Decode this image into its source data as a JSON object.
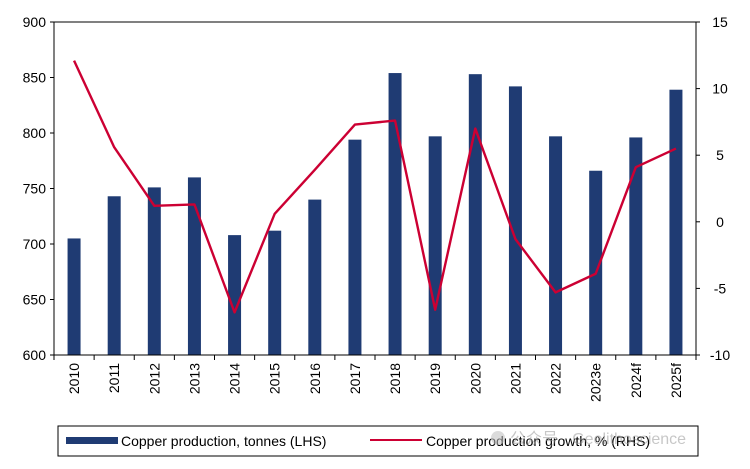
{
  "chart_data": {
    "type": "bar",
    "title": "",
    "xlabel": "",
    "ylabel": "",
    "y2label": "",
    "categories": [
      "2010",
      "2011",
      "2012",
      "2013",
      "2014",
      "2015",
      "2016",
      "2017",
      "2018",
      "2019",
      "2020",
      "2021",
      "2022",
      "2023e",
      "2024f",
      "2025f"
    ],
    "ylim": [
      600,
      900
    ],
    "y2lim": [
      -10,
      15
    ],
    "y_ticks": [
      "600",
      "650",
      "700",
      "750",
      "800",
      "850",
      "900"
    ],
    "y2_ticks": [
      "-10",
      "-5",
      "0",
      "5",
      "10",
      "15"
    ],
    "grid": false,
    "legend_position": "bottom",
    "series": [
      {
        "name": "Copper production, tonnes (LHS)",
        "type": "bar",
        "axis": "left",
        "color": "#1f3b73",
        "values": [
          705,
          743,
          751,
          760,
          708,
          712,
          740,
          794,
          854,
          797,
          853,
          842,
          797,
          766,
          796,
          839
        ]
      },
      {
        "name": "Copper production growth, % (RHS)",
        "type": "line",
        "axis": "right",
        "color": "#cc0033",
        "values": [
          12.1,
          5.6,
          1.2,
          1.3,
          -6.8,
          0.6,
          3.9,
          7.3,
          7.6,
          -6.6,
          7.0,
          -1.3,
          -5.3,
          -3.9,
          4.1,
          5.5
        ]
      }
    ]
  },
  "watermark": "公众号 · Geolithoscience"
}
